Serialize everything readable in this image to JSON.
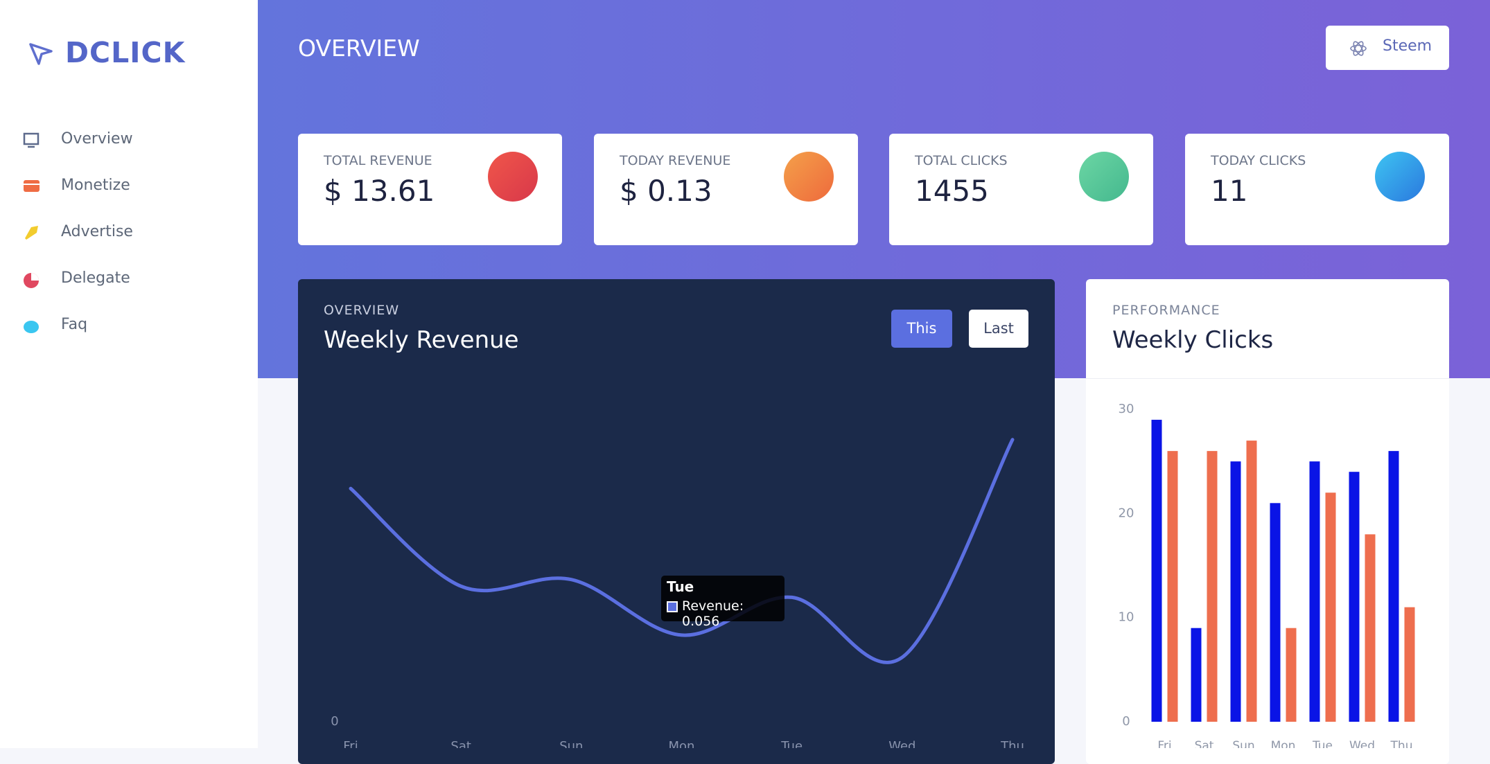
{
  "sidebar": {
    "logo": "DCLICK",
    "nav": [
      "Overview",
      "Monetize",
      "Advertise",
      "Delegate",
      "Faq"
    ]
  },
  "header": {
    "title": "OVERVIEW",
    "button": "Steem"
  },
  "cards": [
    {
      "label": "TOTAL REVENUE",
      "value": "$ 13.61"
    },
    {
      "label": "TODAY REVENUE",
      "value": "$ 0.13"
    },
    {
      "label": "TOTAL CLICKS",
      "value": "1455"
    },
    {
      "label": "TODAY CLICKS",
      "value": "11"
    }
  ],
  "chart_data": [
    {
      "type": "line",
      "kicker": "OVERVIEW",
      "title": "Weekly Revenue",
      "buttons": [
        "This",
        "Last"
      ],
      "categories": [
        "Fri",
        "Sat",
        "Sun",
        "Mon",
        "Tue",
        "Wed",
        "Thu"
      ],
      "values": [
        0.105,
        0.061,
        0.064,
        0.039,
        0.056,
        0.029,
        0.127
      ],
      "color": "#5b6fe0",
      "ylim": [
        0,
        0.14
      ],
      "yticks": [
        0
      ],
      "tooltip": {
        "title": "Tue",
        "text": "Revenue: 0.056"
      }
    },
    {
      "type": "bar",
      "kicker": "PERFORMANCE",
      "title": "Weekly Clicks",
      "categories": [
        "Fri",
        "Sat",
        "Sun",
        "Mon",
        "Tue",
        "Wed",
        "Thu"
      ],
      "series": [
        {
          "color": "#0a14e6",
          "values": [
            29,
            9,
            25,
            21,
            25,
            24,
            26
          ]
        },
        {
          "color": "#ee6e4e",
          "values": [
            26,
            26,
            27,
            9,
            22,
            18,
            11
          ]
        }
      ],
      "ylim": [
        0,
        30
      ],
      "yticks": [
        0,
        10,
        20,
        30
      ]
    }
  ]
}
